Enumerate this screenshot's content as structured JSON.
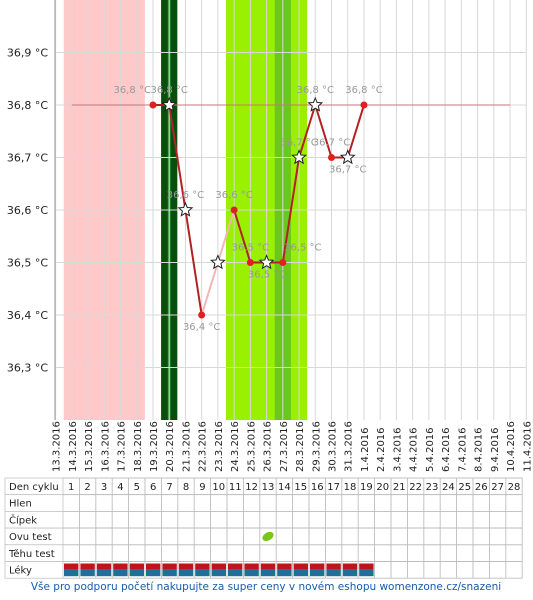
{
  "chart_data": {
    "type": "line",
    "x": [
      "13.3.2016",
      "14.3.2016",
      "15.3.2016",
      "16.3.2016",
      "17.3.2016",
      "18.3.2016",
      "19.3.2016",
      "20.3.2016",
      "21.3.2016",
      "22.3.2016",
      "23.3.2016",
      "24.3.2016",
      "25.3.2016",
      "26.3.2016",
      "27.3.2016",
      "28.3.2016",
      "29.3.2016",
      "30.3.2016",
      "31.3.2016",
      "1.4.2016",
      "2.4.2016",
      "3.4.2016",
      "4.4.2016",
      "5.4.2016",
      "6.4.2016",
      "7.4.2016",
      "8.4.2016",
      "9.4.2016",
      "10.4.2016",
      "11.4.2016"
    ],
    "series": [
      {
        "color": "#b22222",
        "values": [
          null,
          null,
          null,
          null,
          null,
          null,
          36.8,
          36.8,
          36.6,
          36.4,
          36.5,
          36.6,
          36.5,
          36.5,
          36.5,
          36.7,
          36.8,
          36.7,
          36.7,
          36.8,
          null,
          null,
          null,
          null,
          null,
          null,
          null,
          null,
          null,
          null
        ],
        "value_labels": [
          null,
          null,
          null,
          null,
          null,
          null,
          "36,8 °C",
          "36,8 °C",
          "36,6 °C",
          "36,4 °C",
          null,
          "36,6 °C",
          "36,5 °C",
          "36,5 °C",
          "36,5 °C",
          "36,7 °C",
          "36,8 °C",
          "36,7 °C",
          "36,7 °C",
          "36,8 °C",
          null,
          null,
          null,
          null,
          null,
          null,
          null,
          null,
          null,
          null
        ],
        "markers": [
          null,
          null,
          null,
          null,
          null,
          null,
          "dot",
          "star",
          "star",
          "dot",
          "star",
          "dot",
          "dot",
          "star",
          "dot",
          "star",
          "star",
          "dot",
          "star",
          "dot",
          null,
          null,
          null,
          null,
          null,
          null,
          null,
          null,
          null,
          null
        ],
        "excluded": [
          false,
          false,
          false,
          false,
          false,
          false,
          false,
          false,
          false,
          false,
          true,
          false,
          false,
          false,
          false,
          false,
          false,
          false,
          false,
          false,
          false,
          false,
          false,
          false,
          false,
          false,
          false,
          false,
          false,
          false
        ]
      }
    ],
    "coverline": 36.8,
    "bands": [
      {
        "from": "14.3.2016",
        "to": "18.3.2016",
        "color": "#ffc9c9"
      },
      {
        "from": "20.3.2016",
        "to": "20.3.2016",
        "color": "#0b4d0b"
      },
      {
        "from": "24.3.2016",
        "to": "28.3.2016",
        "color": "#99f000"
      },
      {
        "from": "27.3.2016",
        "to": "27.3.2016",
        "color": "#6cc71c"
      }
    ],
    "ylim": [
      36.2,
      37.0
    ],
    "yticks": [
      {
        "value": 36.3,
        "label": "36,3 °C"
      },
      {
        "value": 36.4,
        "label": "36,4 °C"
      },
      {
        "value": 36.5,
        "label": "36,5 °C"
      },
      {
        "value": 36.6,
        "label": "36,6 °C"
      },
      {
        "value": 36.7,
        "label": "36,7 °C"
      },
      {
        "value": 36.8,
        "label": "36,8 °C"
      },
      {
        "value": 36.9,
        "label": "36,9 °C"
      }
    ],
    "grid": true
  },
  "cycle_table": {
    "rows": [
      "Den cyklu",
      "Hlen",
      "Čípek",
      "Ovu test",
      "Těhu test",
      "Léky"
    ],
    "days": [
      1,
      2,
      3,
      4,
      5,
      6,
      7,
      8,
      9,
      10,
      11,
      12,
      13,
      14,
      15,
      16,
      17,
      18,
      19,
      20,
      21,
      22,
      23,
      24,
      25,
      26,
      27,
      28
    ],
    "ovu_positive_day": 13,
    "leky_days": 19
  },
  "footer": "Vše pro podporu početí nakupujte za super ceny v novém eshopu womenzone.cz/snazeni"
}
